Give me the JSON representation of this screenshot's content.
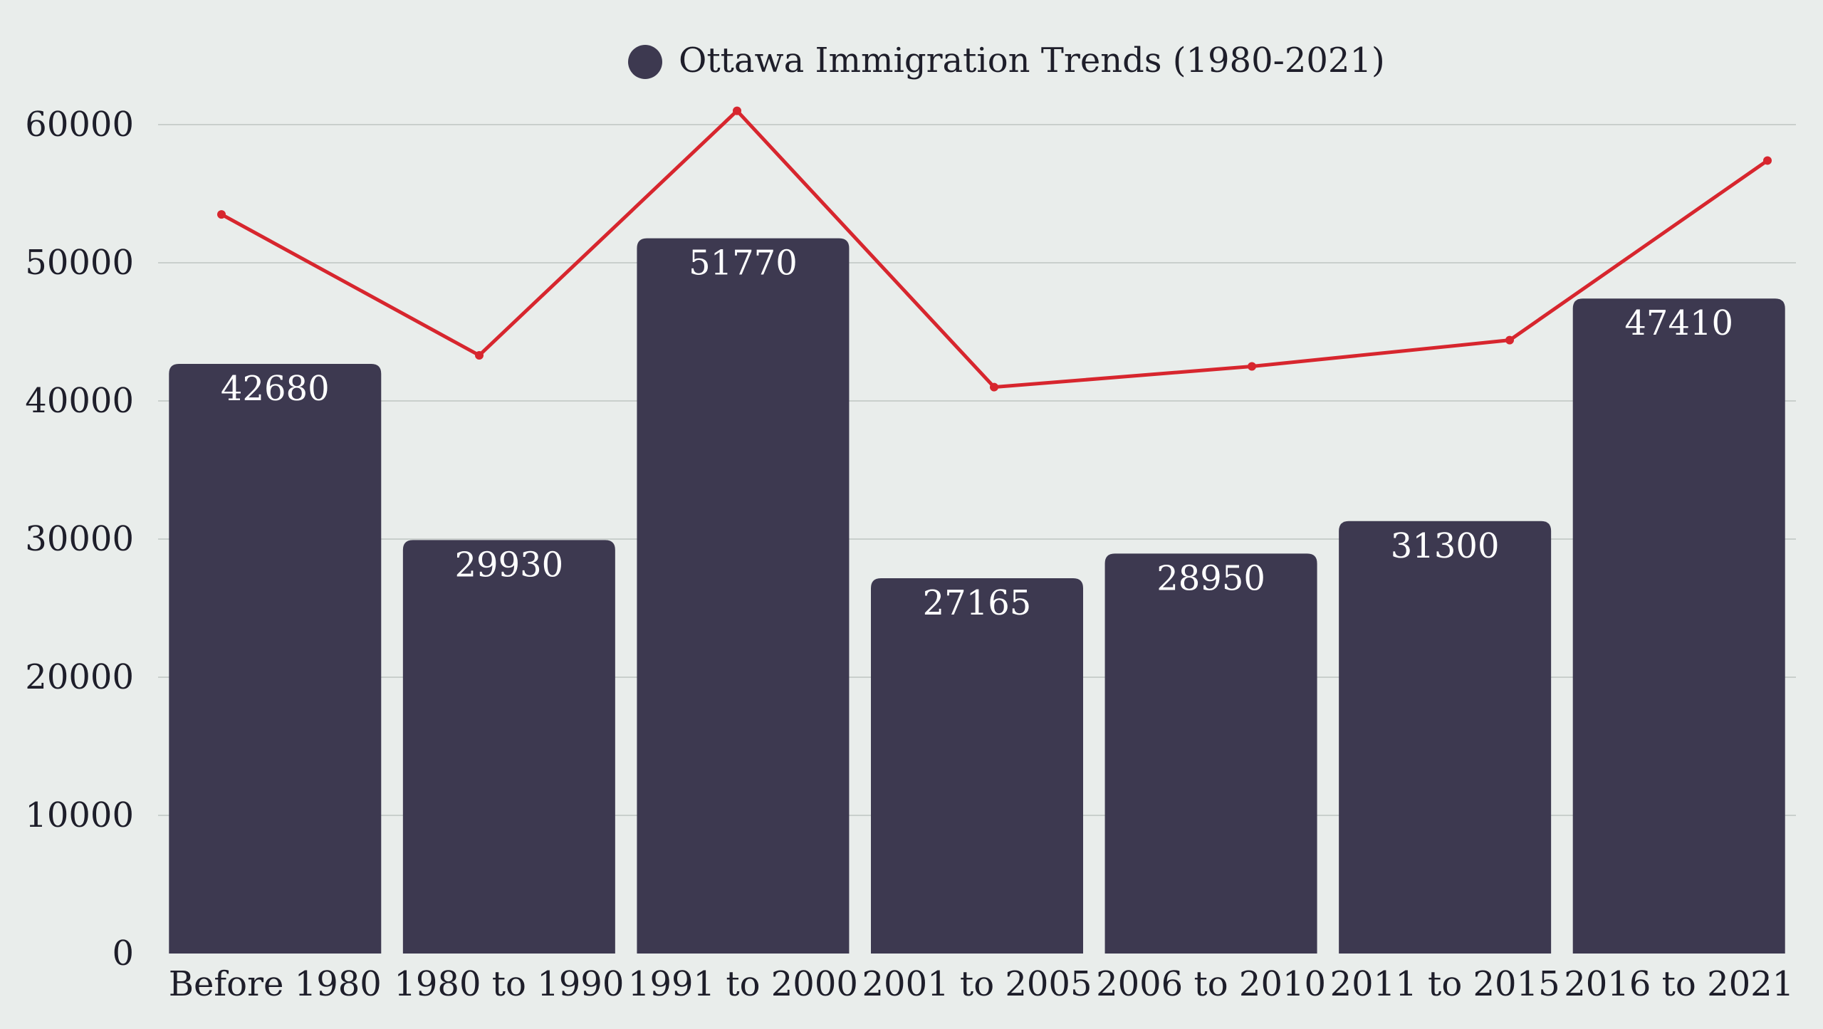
{
  "chart_data": {
    "type": "bar",
    "categories": [
      "Before 1980",
      "1980 to 1990",
      "1991 to 2000",
      "2001 to 2005",
      "2006 to 2010",
      "2011 to 2015",
      "2016 to 2021"
    ],
    "series": [
      {
        "name": "Ottawa Immigration Trends (1980-2021)",
        "type": "bar",
        "values": [
          42680,
          29930,
          51770,
          27165,
          28950,
          31300,
          47410
        ],
        "color": "#3d3950"
      },
      {
        "type": "line",
        "values": [
          53500,
          43300,
          61000,
          41000,
          42500,
          44400,
          57400
        ],
        "color": "#d7262e"
      }
    ],
    "ylim": [
      0,
      60000
    ],
    "yticks": [
      "0",
      "10000",
      "20000",
      "30000",
      "40000",
      "50000",
      "60000"
    ],
    "grid": true,
    "legend_position": "top-center",
    "data_labels": [
      "42680",
      "29930",
      "51770",
      "27165",
      "28950",
      "31300",
      "47410"
    ],
    "background": "#e9edeb",
    "gridline_color": "#c9cfcc",
    "label_color": "#1e1e2a"
  }
}
